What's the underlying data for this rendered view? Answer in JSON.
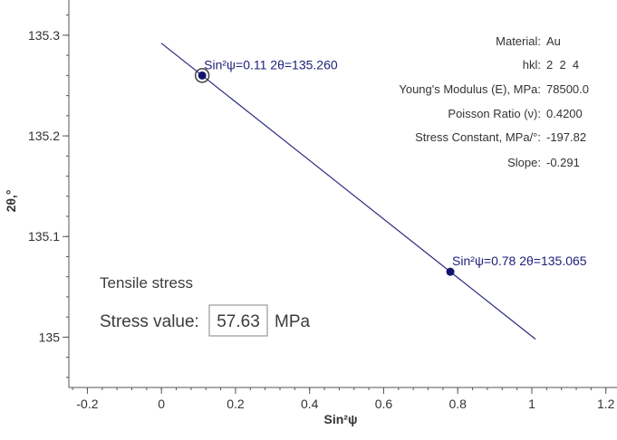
{
  "chart_data": {
    "type": "line",
    "xlabel": "Sin²ψ",
    "ylabel": "2θ,°",
    "xlim": [
      -0.25,
      1.23
    ],
    "ylim": [
      134.95,
      135.335
    ],
    "x_ticks": [
      -0.2,
      0,
      0.2,
      0.4,
      0.6,
      0.8,
      1,
      1.2
    ],
    "x_tick_labels": [
      "-0.2",
      "0",
      "0.2",
      "0.4",
      "0.6",
      "0.8",
      "1",
      "1.2"
    ],
    "y_ticks": [
      135,
      135.1,
      135.2,
      135.3
    ],
    "y_tick_labels": [
      "135",
      "135.1",
      "135.2",
      "135.3"
    ],
    "fit_line": {
      "x": [
        0,
        1.01
      ],
      "y": [
        135.292,
        134.998
      ]
    },
    "points": [
      {
        "x": 0.11,
        "y": 135.26,
        "label": "Sin²ψ=0.11 2θ=135.260",
        "highlighted": true
      },
      {
        "x": 0.78,
        "y": 135.065,
        "label": "Sin²ψ=0.78 2θ=135.065",
        "highlighted": false
      }
    ],
    "info": [
      {
        "label": "Material:",
        "value": "Au"
      },
      {
        "label": "hkl:",
        "value": "2  2  4"
      },
      {
        "label": "Young's Modulus (E), MPa:",
        "value": "78500.0"
      },
      {
        "label": "Poisson Ratio (ν):",
        "value": "0.4200"
      },
      {
        "label": "Stress Constant, MPa/°:",
        "value": "-197.82"
      },
      {
        "label": "Slope:",
        "value": "-0.291"
      }
    ],
    "stress_type": "Tensile stress",
    "stress_label": "Stress value:",
    "stress_value": "57.63",
    "stress_unit": "MPa",
    "colors": {
      "line": "#2b2b80",
      "point": "#14146e",
      "axis": "#555555",
      "text": "#333333"
    }
  }
}
